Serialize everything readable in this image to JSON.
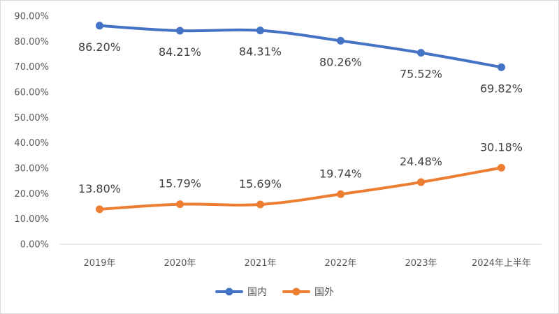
{
  "chart_data": {
    "type": "line",
    "categories": [
      "2019年",
      "2020年",
      "2021年",
      "2022年",
      "2023年",
      "2024年上半年"
    ],
    "series": [
      {
        "name": "国内",
        "values": [
          86.2,
          84.21,
          84.31,
          80.26,
          75.52,
          69.82
        ],
        "labels": [
          "86.20%",
          "84.21%",
          "84.31%",
          "80.26%",
          "75.52%",
          "69.82%"
        ],
        "color": "#4472C4"
      },
      {
        "name": "国外",
        "values": [
          13.8,
          15.79,
          15.69,
          19.74,
          24.48,
          30.18
        ],
        "labels": [
          "13.80%",
          "15.79%",
          "15.69%",
          "19.74%",
          "24.48%",
          "30.18%"
        ],
        "color": "#ED7D31"
      }
    ],
    "y_ticks": [
      "0.00%",
      "10.00%",
      "20.00%",
      "30.00%",
      "40.00%",
      "50.00%",
      "60.00%",
      "70.00%",
      "80.00%",
      "90.00%"
    ],
    "ylim": [
      0,
      90
    ],
    "grid": false,
    "legend_position": "bottom"
  }
}
